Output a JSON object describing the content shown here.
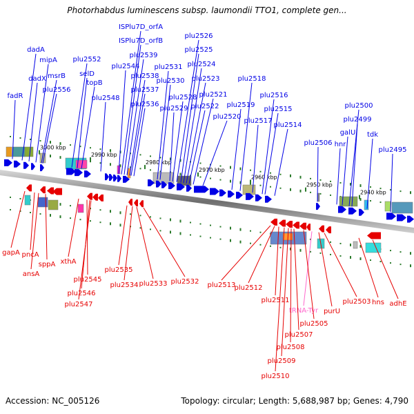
{
  "title": "Photorhabdus luminescens subsp. laumondii TTO1, complete gen...",
  "footer": {
    "accession": "Accession: NC_005126",
    "summary": "Topology: circular; Length: 5,688,987 bp; Genes: 4,790"
  },
  "colors": {
    "forward": "#0000e6",
    "reverse": "#e60000",
    "trna": "#ff66cc",
    "backbone": "#8a8a8a"
  },
  "ticks": [
    {
      "label": "3000 kbp"
    },
    {
      "label": "2990 kbp"
    },
    {
      "label": "2980 kbp"
    },
    {
      "label": "2970 kbp"
    },
    {
      "label": "2960 kbp"
    },
    {
      "label": "2950 kbp"
    },
    {
      "label": "2940 kbp"
    }
  ],
  "forward_genes": [
    {
      "label": "fadR"
    },
    {
      "label": "dadA"
    },
    {
      "label": "dadX"
    },
    {
      "label": "mipA"
    },
    {
      "label": "msrB"
    },
    {
      "label": "plu2556"
    },
    {
      "label": "plu2552"
    },
    {
      "label": "selD"
    },
    {
      "label": "topB"
    },
    {
      "label": "plu2548"
    },
    {
      "label": "ISPlu7D_orfA"
    },
    {
      "label": "ISPlu7D_orfB"
    },
    {
      "label": "plu2539"
    },
    {
      "label": "plu2544"
    },
    {
      "label": "plu2538"
    },
    {
      "label": "plu2537"
    },
    {
      "label": "plu2536"
    },
    {
      "label": "plu2531"
    },
    {
      "label": "plu2530"
    },
    {
      "label": "plu2528"
    },
    {
      "label": "plu2529"
    },
    {
      "label": "plu2526"
    },
    {
      "label": "plu2525"
    },
    {
      "label": "plu2524"
    },
    {
      "label": "plu2523"
    },
    {
      "label": "plu2522"
    },
    {
      "label": "plu2521"
    },
    {
      "label": "plu2520"
    },
    {
      "label": "plu2519"
    },
    {
      "label": "plu2518"
    },
    {
      "label": "plu2517"
    },
    {
      "label": "plu2516"
    },
    {
      "label": "plu2515"
    },
    {
      "label": "plu2514"
    },
    {
      "label": "plu2506"
    },
    {
      "label": "hnr"
    },
    {
      "label": "galU"
    },
    {
      "label": "plu2500"
    },
    {
      "label": "plu2499"
    },
    {
      "label": "tdk"
    },
    {
      "label": "plu2495"
    }
  ],
  "reverse_genes": [
    {
      "label": "gapA"
    },
    {
      "label": "pncA"
    },
    {
      "label": "ansA"
    },
    {
      "label": "sppA"
    },
    {
      "label": "xthA"
    },
    {
      "label": "plu2545"
    },
    {
      "label": "plu2546"
    },
    {
      "label": "plu2547"
    },
    {
      "label": "plu2535"
    },
    {
      "label": "plu2534"
    },
    {
      "label": "plu2533"
    },
    {
      "label": "plu2532"
    },
    {
      "label": "plu2513"
    },
    {
      "label": "plu2512"
    },
    {
      "label": "plu2511"
    },
    {
      "label": "tRNA-Tyr"
    },
    {
      "label": "plu2505"
    },
    {
      "label": "plu2507"
    },
    {
      "label": "plu2508"
    },
    {
      "label": "plu2509"
    },
    {
      "label": "plu2510"
    },
    {
      "label": "purU"
    },
    {
      "label": "plu2503"
    },
    {
      "label": "hns"
    },
    {
      "label": "adhE"
    }
  ]
}
